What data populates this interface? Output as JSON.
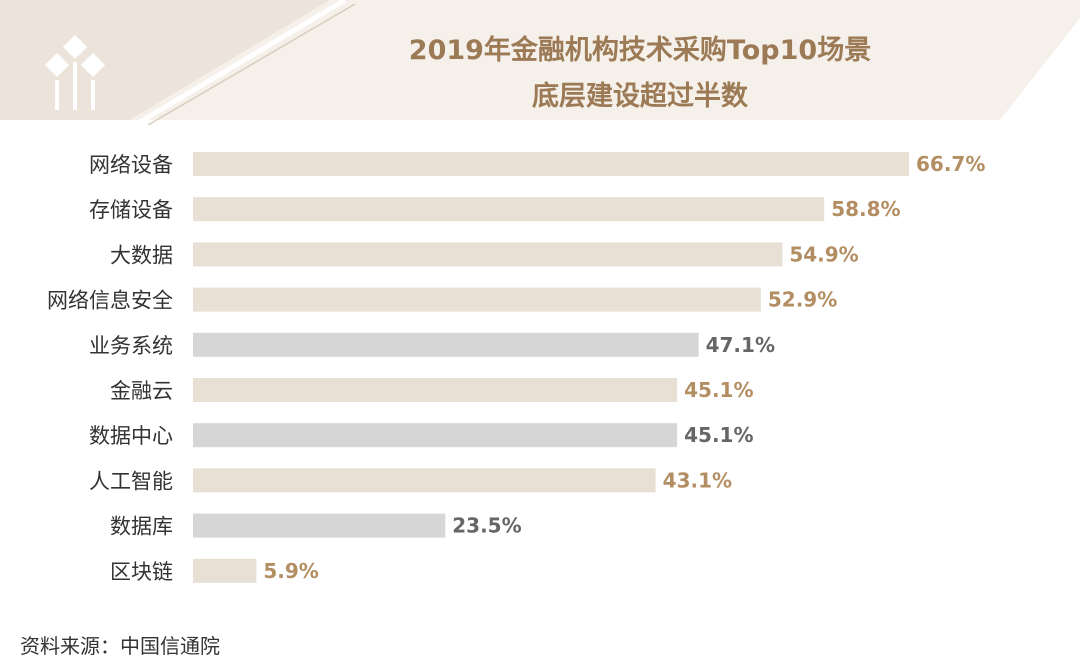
{
  "title_line1": "2019年金融机构技术采购Top10场景",
  "title_line2": "底层建设超过半数",
  "source": "资料来源：中国信通院",
  "colors": {
    "bar_beige": "#e8e0d4",
    "bar_gray": "#d6d6d6",
    "label_gold": "#b48e63",
    "label_gray": "#666666",
    "title": "#9c7a55",
    "header_band": "#f4efe9"
  },
  "chart_data": {
    "type": "bar",
    "orientation": "horizontal",
    "categories": [
      "网络设备",
      "存储设备",
      "大数据",
      "网络信息安全",
      "业务系统",
      "金融云",
      "数据中心",
      "人工智能",
      "数据库",
      "区块链"
    ],
    "values": [
      66.7,
      58.8,
      54.9,
      52.9,
      47.1,
      45.1,
      45.1,
      43.1,
      23.5,
      5.9
    ],
    "value_labels": [
      "66.7%",
      "58.8%",
      "54.9%",
      "52.9%",
      "47.1%",
      "45.1%",
      "45.1%",
      "43.1%",
      "23.5%",
      "5.9%"
    ],
    "bar_colors": [
      "beige",
      "beige",
      "beige",
      "beige",
      "gray",
      "beige",
      "gray",
      "beige",
      "gray",
      "beige"
    ],
    "title": "2019年金融机构技术采购Top10场景 底层建设超过半数",
    "xlim": [
      0,
      70
    ],
    "grid": false,
    "legend": "none"
  }
}
